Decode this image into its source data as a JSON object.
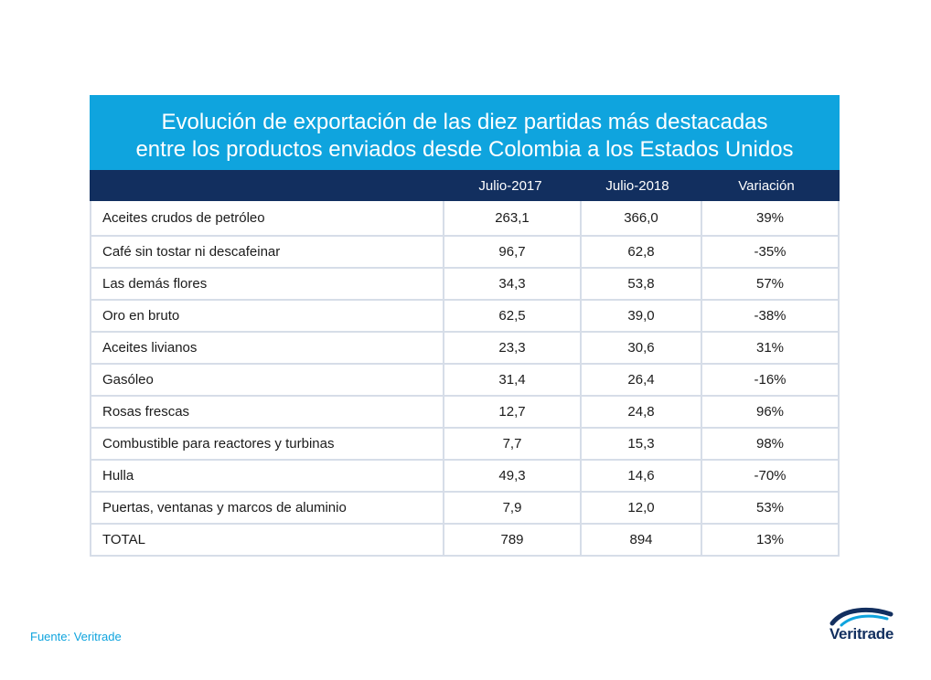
{
  "title": {
    "line1": "Evolución de exportación de las diez partidas más destacadas",
    "line2": "entre los productos enviados desde Colombia a los Estados Unidos"
  },
  "colors": {
    "title_bg": "#0fa4de",
    "header_bg": "#122f5f",
    "source_text": "#0fa4de"
  },
  "source": "Fuente: Veritrade",
  "logo": {
    "text": "Veritrade",
    "icon": "veritrade-swoosh-icon"
  },
  "chart_data": {
    "type": "table",
    "columns": [
      "",
      "Julio-2017",
      "Julio-2018",
      "Variación"
    ],
    "rows": [
      [
        "Aceites crudos de petróleo",
        "263,1",
        "366,0",
        "39%"
      ],
      [
        "Café sin tostar ni descafeinar",
        "96,7",
        "62,8",
        "-35%"
      ],
      [
        "Las demás flores",
        "34,3",
        "53,8",
        "57%"
      ],
      [
        "Oro en bruto",
        "62,5",
        "39,0",
        "-38%"
      ],
      [
        "Aceites livianos",
        "23,3",
        "30,6",
        "31%"
      ],
      [
        "Gasóleo",
        "31,4",
        "26,4",
        "-16%"
      ],
      [
        "Rosas frescas",
        "12,7",
        "24,8",
        "96%"
      ],
      [
        "Combustible para reactores y turbinas",
        "7,7",
        "15,3",
        "98%"
      ],
      [
        "Hulla",
        "49,3",
        "14,6",
        "-70%"
      ],
      [
        "Puertas, ventanas y marcos de aluminio",
        "7,9",
        "12,0",
        "53%"
      ],
      [
        "TOTAL",
        "789",
        "894",
        "13%"
      ]
    ]
  }
}
